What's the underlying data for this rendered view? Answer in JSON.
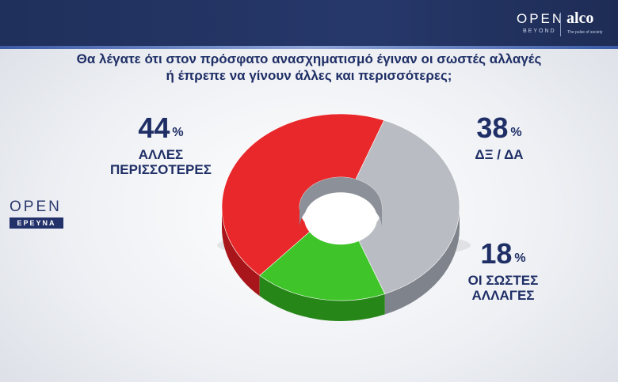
{
  "header": {
    "brand_open": "OPEN",
    "brand_beyond": "BEYOND",
    "brand_alco": "alco",
    "brand_tagline": "The pulse of society"
  },
  "side_logo": {
    "open": "OPEN",
    "erevna": "ΕΡΕΥΝΑ"
  },
  "chart_data": {
    "type": "pie",
    "style": "3d-donut",
    "title": "Θα λέγατε ότι στον πρόσφατο ανασχηματισμό έγιναν οι σωστές αλλαγές ή έπρεπε να γίνουν άλλες και περισσότερες;",
    "title_lines": [
      "Θα λέγατε ότι στον πρόσφατο ανασχηματισμό έγιναν οι σωστές αλλαγές",
      "ή έπρεπε να γίνουν άλλες και περισσότερες;"
    ],
    "unit": "%",
    "slices": [
      {
        "value": 44,
        "label_lines": [
          "ΑΛΛΕΣ",
          "ΠΕΡΙΣΣΟΤΕΡΕΣ"
        ],
        "color": "#e8282a",
        "side": "#a8151a"
      },
      {
        "value": 38,
        "label_lines": [
          "ΔΞ / ΔΑ"
        ],
        "color": "#b9bcc2",
        "side": "#7f838b"
      },
      {
        "value": 18,
        "label_lines": [
          "ΟΙ ΣΩΣΤΕΣ",
          "ΑΛΛΑΓΕΣ"
        ],
        "color": "#3fc52a",
        "side": "#268617"
      }
    ]
  }
}
